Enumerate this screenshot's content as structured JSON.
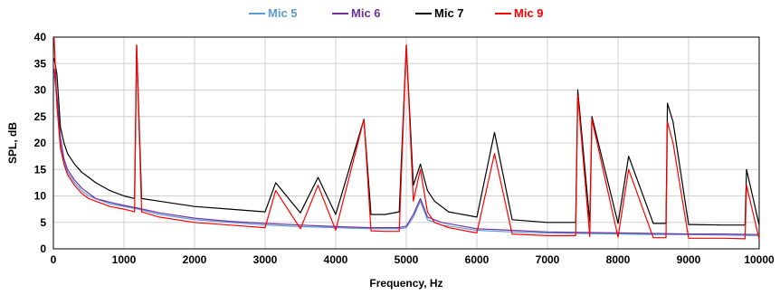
{
  "chart_data": {
    "type": "line",
    "xlabel": "Frequency, Hz",
    "ylabel": "SPL, dB",
    "xlim": [
      0,
      10000
    ],
    "ylim": [
      0,
      40
    ],
    "x_ticks": [
      0,
      1000,
      2000,
      3000,
      4000,
      5000,
      6000,
      7000,
      8000,
      9000,
      10000
    ],
    "y_ticks": [
      0,
      5,
      10,
      15,
      20,
      25,
      30,
      35,
      40
    ],
    "grid": true,
    "legend_position": "top",
    "series": [
      {
        "name": "Mic 5",
        "color": "#5b9bd5",
        "x": [
          10,
          50,
          100,
          150,
          200,
          300,
          400,
          500,
          600,
          800,
          1000,
          1200,
          1500,
          2000,
          2500,
          3000,
          3500,
          4000,
          4500,
          4900,
          5000,
          5100,
          5200,
          5300,
          5500,
          6000,
          6500,
          7000,
          7500,
          8000,
          8500,
          9000,
          9500,
          10000
        ],
        "values": [
          33,
          28,
          20,
          16.5,
          14.5,
          12.5,
          11,
          10,
          9.5,
          8.5,
          8,
          7.5,
          6.5,
          5.5,
          5,
          4.5,
          4.2,
          4,
          3.8,
          3.8,
          4,
          6,
          9,
          5.5,
          4.5,
          3.5,
          3.2,
          3,
          2.9,
          2.8,
          2.7,
          2.7,
          2.6,
          2.5
        ]
      },
      {
        "name": "Mic 6",
        "color": "#7030a0",
        "x": [
          10,
          50,
          100,
          150,
          200,
          300,
          400,
          500,
          600,
          800,
          1000,
          1200,
          1500,
          2000,
          2500,
          3000,
          3500,
          4000,
          4500,
          4900,
          5000,
          5100,
          5200,
          5300,
          5500,
          6000,
          6500,
          7000,
          7500,
          8000,
          8500,
          9000,
          9500,
          10000
        ],
        "values": [
          34,
          29,
          21,
          17,
          15,
          13,
          11.5,
          10.5,
          9.5,
          8.8,
          8.2,
          7.7,
          6.8,
          5.8,
          5.2,
          4.8,
          4.5,
          4.2,
          4,
          4,
          4.3,
          6.5,
          9.5,
          6,
          5,
          3.8,
          3.5,
          3.2,
          3.1,
          3,
          2.9,
          2.8,
          2.8,
          2.7
        ]
      },
      {
        "name": "Mic 7",
        "color": "#000000",
        "x": [
          10,
          50,
          100,
          150,
          200,
          300,
          400,
          500,
          600,
          800,
          1000,
          1150,
          1180,
          1250,
          1500,
          2000,
          2500,
          3000,
          3150,
          3500,
          3750,
          4000,
          4400,
          4500,
          4700,
          4900,
          5000,
          5100,
          5200,
          5300,
          5400,
          5600,
          6000,
          6250,
          6500,
          7000,
          7400,
          7430,
          7600,
          7630,
          8000,
          8150,
          8500,
          8680,
          8700,
          8780,
          9000,
          9500,
          9800,
          9820,
          10000
        ],
        "values": [
          36,
          33,
          23,
          20,
          18,
          16,
          14.5,
          13.5,
          12.5,
          11,
          10,
          9.5,
          38.5,
          9.5,
          9,
          8,
          7.5,
          7,
          12.5,
          6.8,
          13.5,
          6.5,
          24.5,
          6.5,
          6.5,
          7,
          38.5,
          12,
          16,
          11,
          9,
          7,
          6,
          22,
          5.5,
          5,
          5,
          30,
          5,
          25,
          4.8,
          17.5,
          4.8,
          4.8,
          27.5,
          24,
          4.6,
          4.5,
          4.5,
          15,
          4.5
        ]
      },
      {
        "name": "Mic 9",
        "color": "#ff0000",
        "x": [
          10,
          50,
          100,
          150,
          200,
          300,
          400,
          500,
          600,
          800,
          1000,
          1150,
          1180,
          1250,
          1500,
          2000,
          2500,
          3000,
          3150,
          3500,
          3750,
          4000,
          4400,
          4500,
          4700,
          4900,
          5000,
          5100,
          5200,
          5300,
          5400,
          5600,
          6000,
          6250,
          6500,
          7000,
          7400,
          7430,
          7600,
          7630,
          8000,
          8150,
          8500,
          8680,
          8700,
          8780,
          9000,
          9500,
          9800,
          9820,
          10000
        ],
        "values": [
          40,
          27,
          19,
          16,
          14,
          12,
          10.5,
          9.5,
          9,
          8,
          7.5,
          7,
          38.5,
          7,
          6,
          5,
          4.5,
          4,
          11,
          3.8,
          12,
          3.5,
          24.5,
          3.4,
          3.3,
          3.3,
          38.5,
          9,
          15,
          7,
          5,
          4,
          3,
          18,
          2.8,
          2.5,
          2.5,
          29,
          2.3,
          24.5,
          2.2,
          15,
          2.1,
          2.1,
          24,
          20,
          2,
          2,
          1.9,
          12,
          1.8
        ]
      }
    ]
  }
}
